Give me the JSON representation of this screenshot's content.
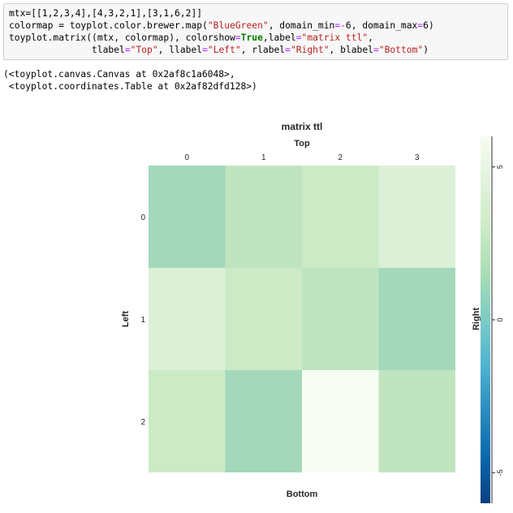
{
  "code_cell": {
    "lines": [
      [
        {
          "t": "mtx=[[1,2,3,4],[4,3,2,1],[3,1,6,2]]",
          "c": ""
        }
      ],
      [
        {
          "t": "colormap = toyplot.color.brewer.map(",
          "c": ""
        },
        {
          "t": "\"BlueGreen\"",
          "c": "str"
        },
        {
          "t": ", domain_min",
          "c": ""
        },
        {
          "t": "=-",
          "c": "op"
        },
        {
          "t": "6, domain_max",
          "c": ""
        },
        {
          "t": "=",
          "c": "op"
        },
        {
          "t": "6)",
          "c": ""
        }
      ],
      [
        {
          "t": "toyplot.matrix((mtx, colormap), colorshow",
          "c": ""
        },
        {
          "t": "=",
          "c": "op"
        },
        {
          "t": "True",
          "c": "kw"
        },
        {
          "t": ",label",
          "c": ""
        },
        {
          "t": "=",
          "c": "op"
        },
        {
          "t": "\"matrix ttl\"",
          "c": "str"
        },
        {
          "t": ",",
          "c": ""
        }
      ],
      [
        {
          "t": "               tlabel",
          "c": ""
        },
        {
          "t": "=",
          "c": "op"
        },
        {
          "t": "\"Top\"",
          "c": "str"
        },
        {
          "t": ", llabel",
          "c": ""
        },
        {
          "t": "=",
          "c": "op"
        },
        {
          "t": "\"Left\"",
          "c": "str"
        },
        {
          "t": ", rlabel",
          "c": ""
        },
        {
          "t": "=",
          "c": "op"
        },
        {
          "t": "\"Right\"",
          "c": "str"
        },
        {
          "t": ", blabel",
          "c": ""
        },
        {
          "t": "=",
          "c": "op"
        },
        {
          "t": "\"Bottom\"",
          "c": "str"
        },
        {
          "t": ")",
          "c": ""
        }
      ]
    ]
  },
  "output": {
    "lines": [
      "(<toyplot.canvas.Canvas at 0x2af8c1a6048>,",
      " <toyplot.coordinates.Table at 0x2af82dfd128>)"
    ]
  },
  "chart_data": {
    "type": "heatmap",
    "title": "matrix ttl",
    "tlabel": "Top",
    "llabel": "Left",
    "rlabel": "Right",
    "blabel": "Bottom",
    "matrix": [
      [
        1,
        2,
        3,
        4
      ],
      [
        4,
        3,
        2,
        1
      ],
      [
        3,
        1,
        6,
        2
      ]
    ],
    "column_labels": [
      "0",
      "1",
      "2",
      "3"
    ],
    "row_labels": [
      "0",
      "1",
      "2"
    ],
    "cell_colors": [
      [
        "#a3d8bb",
        "#c0e4c0",
        "#cceac6",
        "#dcf0d7"
      ],
      [
        "#dcf0d7",
        "#cceac6",
        "#c0e4c0",
        "#a3d8bb"
      ],
      [
        "#cceac6",
        "#a3d8bb",
        "#f6fcf3",
        "#c0e4c0"
      ]
    ],
    "colorbar": {
      "domain_min": -6,
      "domain_max": 6,
      "tick_labels": [
        "5",
        "0",
        "-5"
      ],
      "tick_values": [
        5,
        0,
        -5
      ],
      "stops": [
        "#f7fcf0",
        "#e0f3db",
        "#ccebc5",
        "#a8ddb5",
        "#7bccc4",
        "#4eb3d3",
        "#2b8cbe",
        "#0868ac",
        "#084081"
      ]
    }
  }
}
